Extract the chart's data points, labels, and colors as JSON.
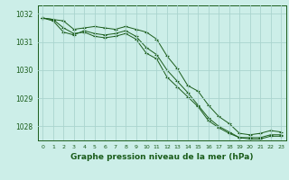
{
  "xlabel": "Graphe pression niveau de la mer (hPa)",
  "bg_color": "#cceee8",
  "grid_color": "#aad4ce",
  "line_color": "#1a5c1a",
  "ylim": [
    1027.5,
    1032.3
  ],
  "xlim": [
    -0.5,
    23.5
  ],
  "yticks": [
    1028,
    1029,
    1030,
    1031,
    1032
  ],
  "xticks": [
    0,
    1,
    2,
    3,
    4,
    5,
    6,
    7,
    8,
    9,
    10,
    11,
    12,
    13,
    14,
    15,
    16,
    17,
    18,
    19,
    20,
    21,
    22,
    23
  ],
  "line1": [
    1031.85,
    1031.8,
    1031.75,
    1031.45,
    1031.5,
    1031.55,
    1031.5,
    1031.45,
    1031.55,
    1031.45,
    1031.35,
    1031.1,
    1030.5,
    1030.05,
    1029.45,
    1029.25,
    1028.75,
    1028.35,
    1028.1,
    1027.75,
    1027.7,
    1027.75,
    1027.85,
    1027.8
  ],
  "line2": [
    1031.85,
    1031.75,
    1031.35,
    1031.25,
    1031.4,
    1031.3,
    1031.25,
    1031.3,
    1031.4,
    1031.2,
    1030.8,
    1030.55,
    1030.0,
    1029.6,
    1029.2,
    1028.75,
    1028.3,
    1028.0,
    1027.8,
    1027.6,
    1027.6,
    1027.6,
    1027.7,
    1027.7
  ],
  "line3": [
    1031.85,
    1031.8,
    1031.5,
    1031.3,
    1031.35,
    1031.2,
    1031.15,
    1031.2,
    1031.3,
    1031.1,
    1030.6,
    1030.4,
    1029.75,
    1029.4,
    1029.05,
    1028.7,
    1028.2,
    1027.95,
    1027.75,
    1027.6,
    1027.55,
    1027.55,
    1027.65,
    1027.65
  ]
}
